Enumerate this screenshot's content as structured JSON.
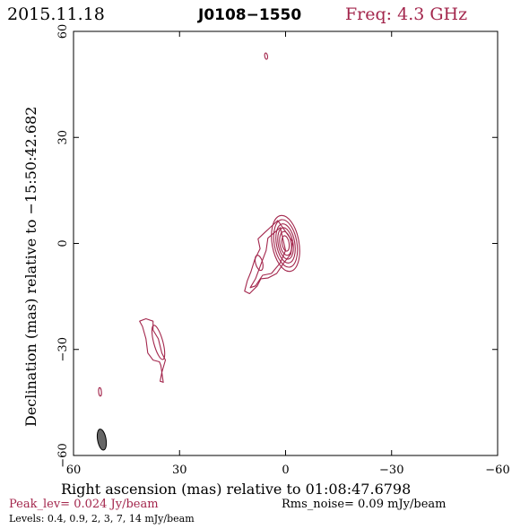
{
  "header": {
    "date": "2015.11.18",
    "source": "J0108−1550",
    "frequency": "Freq: 4.3 GHz"
  },
  "footer": {
    "peak": "Peak_lev=  0.024 Jy/beam",
    "rms": "Rms_noise= 0.09 mJy/beam",
    "levels": "Levels: 0.4,  0.9,    2,    3,    7,   14  mJy/beam"
  },
  "colors": {
    "contour": "#a3264c",
    "peak_text": "#a3264c",
    "beam_fill": "#666666",
    "axes": "#000000"
  },
  "chart_data": {
    "type": "contour",
    "title": "J0108−1550",
    "xlabel": "Right ascension (mas) relative to 01:08:47.6798",
    "ylabel": "Declination (mas) relative to −15:50:42.682",
    "xlim": [
      60,
      -60
    ],
    "ylim": [
      -60,
      60
    ],
    "xticks": [
      60,
      30,
      0,
      -30,
      -60
    ],
    "xtick_labels": [
      "60",
      "30",
      "0",
      "−30",
      "−60"
    ],
    "yticks": [
      -60,
      -30,
      0,
      30,
      60
    ],
    "ytick_labels": [
      "−60",
      "−30",
      "0",
      "30",
      "60"
    ],
    "contour_levels_mJy": [
      0.4,
      0.9,
      2,
      3,
      7,
      14
    ],
    "components": [
      {
        "name": "core",
        "x": 0,
        "y": 0,
        "dx": [
          3.8,
          3.2,
          2.6,
          2.1,
          1.6,
          1.0
        ],
        "dy": [
          8.0,
          6.8,
          5.6,
          4.5,
          3.4,
          2.2
        ],
        "pa_deg": 170
      },
      {
        "name": "inner-jet",
        "x": 7.5,
        "y": -5.5,
        "dx": [
          1.0
        ],
        "dy": [
          2.2
        ],
        "pa_deg": 165
      },
      {
        "name": "knot",
        "x": 36,
        "y": -28,
        "dx": [
          1.3
        ],
        "dy": [
          5.0
        ],
        "pa_deg": 165
      },
      {
        "name": "blob-north",
        "x": 5.5,
        "y": 53,
        "dx": [
          0.4
        ],
        "dy": [
          0.9
        ],
        "pa_deg": 170
      },
      {
        "name": "blob-southwest",
        "x": 52.5,
        "y": -42,
        "dx": [
          0.4
        ],
        "dy": [
          1.2
        ],
        "pa_deg": 175
      }
    ],
    "jet_outline": [
      [
        2.2,
        6.5
      ],
      [
        6.0,
        3.0
      ],
      [
        7.8,
        1.3
      ],
      [
        7.2,
        -1.5
      ],
      [
        8.7,
        -4.5
      ],
      [
        9.8,
        -8.0
      ],
      [
        10.8,
        -10.5
      ],
      [
        11.6,
        -13.5
      ],
      [
        10.2,
        -14.2
      ],
      [
        8.0,
        -12.0
      ],
      [
        7.0,
        -10.0
      ],
      [
        5.0,
        -9.8
      ],
      [
        2.5,
        -8.5
      ],
      [
        0.5,
        -5.5
      ],
      [
        -1.5,
        -3.0
      ],
      [
        -2.0,
        0.5
      ]
    ],
    "jet_outline_inner": [
      [
        1.5,
        4.5
      ],
      [
        5.0,
        1.5
      ],
      [
        5.5,
        -2.0
      ],
      [
        7.0,
        -6.0
      ],
      [
        8.5,
        -10.0
      ],
      [
        10.0,
        -12.5
      ],
      [
        8.5,
        -12.0
      ],
      [
        6.5,
        -9.0
      ],
      [
        4.0,
        -8.5
      ],
      [
        1.5,
        -5.5
      ],
      [
        0,
        -2.0
      ]
    ],
    "knot_outline": [
      [
        39.5,
        -21.3
      ],
      [
        37.5,
        -22.0
      ],
      [
        37.5,
        -24.5
      ],
      [
        36.0,
        -27.0
      ],
      [
        35.0,
        -31.0
      ],
      [
        34.0,
        -33.0
      ],
      [
        35.0,
        -36.5
      ],
      [
        35.5,
        -39.0
      ],
      [
        34.6,
        -39.3
      ],
      [
        35.3,
        -34.5
      ],
      [
        35.7,
        -33.5
      ],
      [
        37.5,
        -33.0
      ],
      [
        39.0,
        -31.0
      ],
      [
        39.5,
        -27.0
      ],
      [
        40.5,
        -23.5
      ],
      [
        41.3,
        -22.0
      ]
    ],
    "beam": {
      "x": 52,
      "y": -55.5,
      "major_mas": 6.0,
      "minor_mas": 2.4,
      "pa_deg": -10
    }
  }
}
